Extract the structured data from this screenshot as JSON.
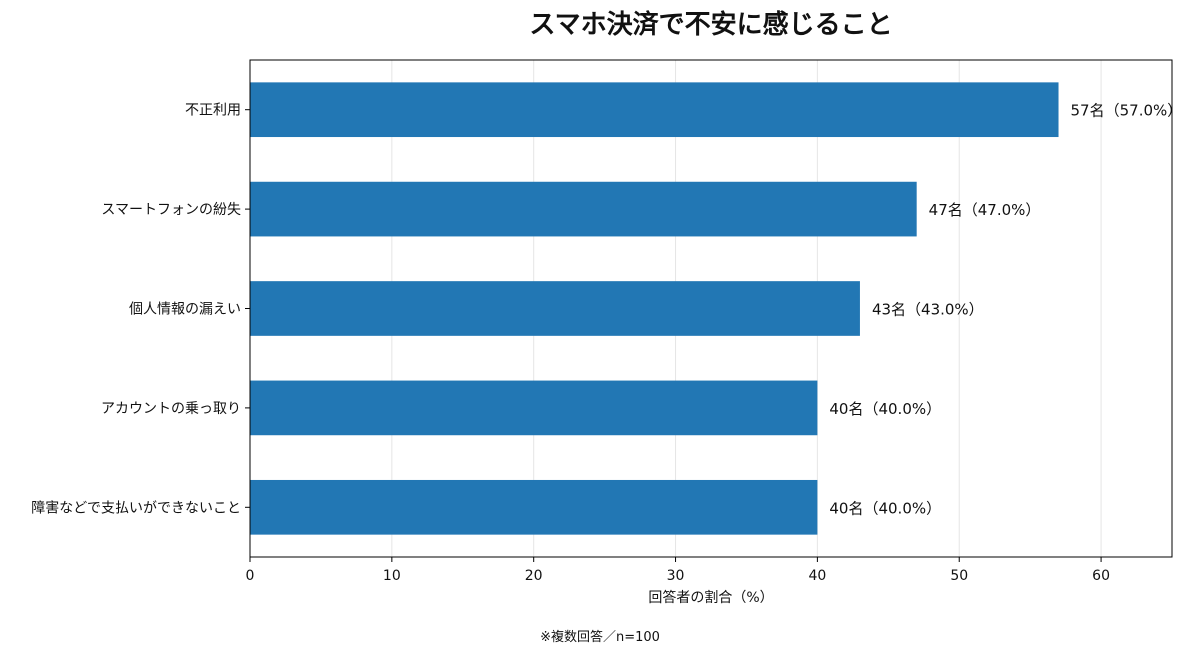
{
  "chart_data": {
    "type": "bar",
    "orientation": "horizontal",
    "title": "スマホ決済で不安に感じること",
    "xlabel": "回答者の割合（%）",
    "ylabel": "",
    "xlim": [
      0,
      65
    ],
    "xticks": [
      0,
      10,
      20,
      30,
      40,
      50,
      60
    ],
    "grid": "vertical",
    "bar_color": "#2277b4",
    "categories": [
      "不正利用",
      "スマートフォンの紛失",
      "個人情報の漏えい",
      "アカウントの乗っ取り",
      "障害などで支払いができないこと"
    ],
    "values": [
      57.0,
      47.0,
      43.0,
      40.0,
      40.0
    ],
    "data_labels": [
      "57名（57.0%）",
      "47名（47.0%）",
      "43名（43.0%）",
      "40名（40.0%）",
      "40名（40.0%）"
    ],
    "footnote": "※複数回答／n=100"
  }
}
